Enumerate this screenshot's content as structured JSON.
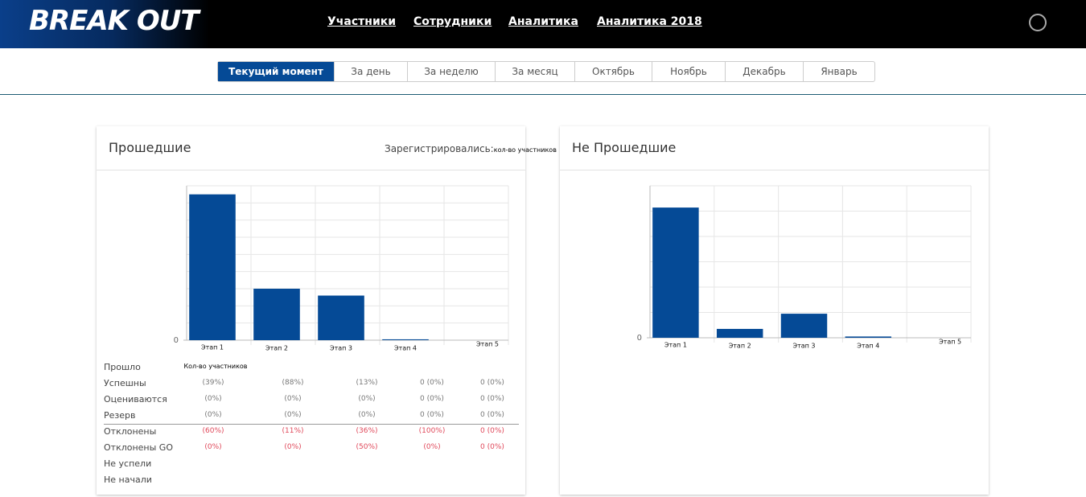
{
  "header": {
    "logo": "BREAK OUT",
    "nav": [
      "Участники",
      "Сотрудники",
      "Аналитика",
      "Аналитика 2018"
    ]
  },
  "tabs": {
    "items": [
      "Текущий момент",
      "За день",
      "За неделю",
      "За месяц",
      "Октябрь",
      "Ноябрь",
      "Декабрь",
      "Январь"
    ],
    "active": 0
  },
  "left_panel": {
    "registered_label": "Зарегистрировались:",
    "registered_value": "кол-во участников",
    "table": {
      "rows": [
        {
          "label": "Прошло",
          "cells": [
            "Кол-во участников"
          ]
        },
        {
          "label": "Успешны",
          "cells": [
            "(39%)",
            "(88%)",
            "(13%)",
            "0 (0%)",
            "0 (0%)"
          ]
        },
        {
          "label": "Оцениваются",
          "cells": [
            "(0%)",
            "(0%)",
            "(0%)",
            "0 (0%)",
            "0 (0%)"
          ]
        },
        {
          "label": "Резерв",
          "cells": [
            "(0%)",
            "(0%)",
            "(0%)",
            "0 (0%)",
            "0 (0%)"
          ]
        },
        {
          "label": "Отклонены",
          "cells": [
            "(60%)",
            "(11%)",
            "(36%)",
            "(100%)",
            "0 (0%)"
          ]
        },
        {
          "label": "Отклонены GO",
          "cells": [
            "(0%)",
            "(0%)",
            "(50%)",
            "(0%)",
            "0 (0%)"
          ]
        },
        {
          "label": "Не успели"
        },
        {
          "label": "Не начали"
        }
      ]
    }
  },
  "chart_data": [
    {
      "type": "bar",
      "title": "Прошедшие",
      "categories": [
        "Этап 1",
        "Этап 2",
        "Этап 3",
        "Этап 4",
        "Этап 5"
      ],
      "values": [
        85,
        30,
        26,
        0.5,
        0
      ],
      "color": "#054a96",
      "ylim": [
        0,
        90
      ],
      "yticks": [
        0
      ],
      "grid": true
    },
    {
      "type": "bar",
      "title": "Не Прошедшие",
      "categories": [
        "Этап 1",
        "Этап 2",
        "Этап 3",
        "Этап 4",
        "Этап 5"
      ],
      "values": [
        51.4,
        3.5,
        9.5,
        0.5,
        0
      ],
      "color": "#054a96",
      "ylim": [
        0,
        60
      ],
      "yticks": [
        0
      ],
      "grid": true
    }
  ]
}
